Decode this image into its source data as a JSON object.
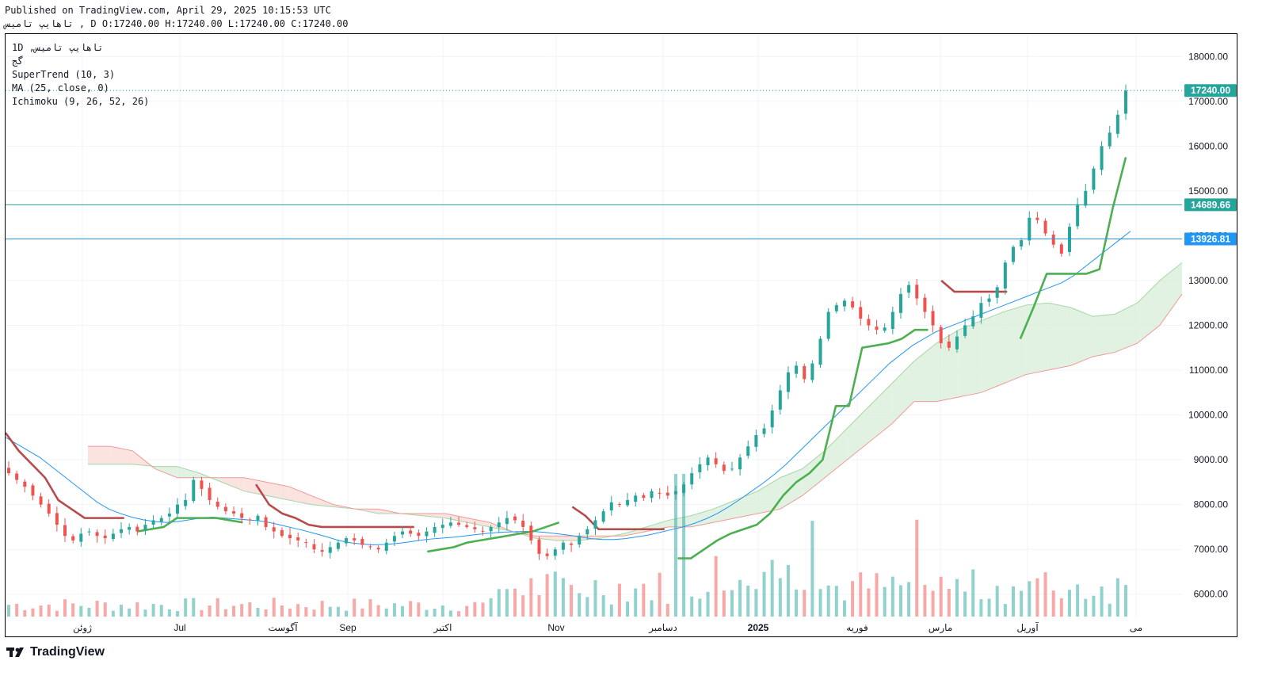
{
  "header": {
    "published": "Published on TradingView.com, April 29, 2025 10:15:53 UTC",
    "ohlc": "تاهایپ تامیس , D O:17240.00 H:17240.00 L:17240.00 C:17240.00"
  },
  "legend": {
    "symbol": "1D ,تاهایپ تامیس",
    "exchange": "گج",
    "supertrend": "SuperTrend (10, 3)",
    "ma": "MA (25, close, 0)",
    "ichimoku": "Ichimoku (9, 26, 52, 26)"
  },
  "brand": {
    "name": "TradingView"
  },
  "colors": {
    "up": "#26a69a",
    "down": "#ef5350",
    "ma": "#2196f3",
    "st_up": "#4caf50",
    "st_down": "#b74a4a",
    "cloud_up": "#d8eed8",
    "cloud_down": "#f9d9d6"
  },
  "chart_data": {
    "type": "candlestick",
    "title": "تاهایپ تامیس, 1D",
    "ylim": [
      5500,
      18500
    ],
    "y_ticks": [
      "6000.00",
      "7000.00",
      "8000.00",
      "9000.00",
      "10000.00",
      "11000.00",
      "12000.00",
      "13000.00",
      "14000.00",
      "15000.00",
      "16000.00",
      "17000.00",
      "18000.00"
    ],
    "x_ticks": [
      "ژوئن",
      "Jul",
      "آگوست",
      "Sep",
      "اکتبر",
      "Nov",
      "دسامبر",
      "2025",
      "فوریه",
      "مارس",
      "آوریل",
      "می"
    ],
    "price_labels": [
      {
        "value": 17240.0,
        "text": "17240.00",
        "style": "last_price"
      },
      {
        "value": 14689.66,
        "text": "14689.66",
        "style": "horizontal_line"
      },
      {
        "value": 13926.81,
        "text": "13926.81",
        "style": "horizontal_line"
      }
    ],
    "close_series": [
      8700,
      8550,
      8400,
      8200,
      8000,
      7800,
      7550,
      7300,
      7200,
      7350,
      7400,
      7300,
      7250,
      7350,
      7450,
      7500,
      7400,
      7550,
      7650,
      7700,
      7800,
      8000,
      8100,
      8550,
      8350,
      8100,
      7950,
      7850,
      7800,
      7700,
      7650,
      7750,
      7500,
      7400,
      7300,
      7250,
      7200,
      7150,
      7000,
      6950,
      7050,
      7150,
      7250,
      7200,
      7100,
      7050,
      7000,
      7150,
      7300,
      7400,
      7350,
      7300,
      7400,
      7500,
      7550,
      7600,
      7550,
      7500,
      7450,
      7400,
      7500,
      7600,
      7700,
      7650,
      7500,
      7200,
      6900,
      6850,
      7000,
      7150,
      7100,
      7300,
      7450,
      7650,
      7850,
      8050,
      8000,
      8100,
      8200,
      8150,
      8300,
      8250,
      8200,
      8300,
      8450,
      8700,
      8900,
      9050,
      8900,
      8750,
      8800,
      9050,
      9300,
      9550,
      9700,
      10100,
      10550,
      10950,
      11100,
      10800,
      11150,
      11700,
      12300,
      12450,
      12550,
      12400,
      12150,
      12000,
      11900,
      11950,
      12300,
      12700,
      12900,
      12600,
      12300,
      12000,
      11600,
      11500,
      11750,
      12000,
      12200,
      12500,
      12600,
      12850,
      13400,
      13750,
      13900,
      14400,
      14350,
      14050,
      13800,
      13600,
      14200,
      14700,
      15000,
      15500,
      16000,
      16300,
      16700,
      17240
    ],
    "ma_series": [
      9500,
      9350,
      9200,
      9050,
      8850,
      8650,
      8450,
      8250,
      8050,
      7900,
      7800,
      7720,
      7660,
      7620,
      7600,
      7620,
      7660,
      7700,
      7720,
      7700,
      7680,
      7660,
      7640,
      7600,
      7540,
      7480,
      7420,
      7350,
      7280,
      7200,
      7150,
      7120,
      7100,
      7110,
      7130,
      7160,
      7200,
      7230,
      7250,
      7270,
      7300,
      7330,
      7360,
      7380,
      7390,
      7400,
      7400,
      7380,
      7350,
      7320,
      7280,
      7240,
      7220,
      7220,
      7240,
      7280,
      7320,
      7380,
      7440,
      7500,
      7580,
      7680,
      7800,
      7950,
      8120,
      8300,
      8480,
      8680,
      8900,
      9150,
      9400,
      9650,
      9900,
      10150,
      10400,
      10650,
      10900,
      11150,
      11350,
      11550,
      11700,
      11850,
      11950,
      12050,
      12150,
      12250,
      12350,
      12450,
      12550,
      12650,
      12750,
      12850,
      12950,
      13100,
      13300,
      13500,
      13700,
      13900,
      14100
    ],
    "supertrend_series": [
      {
        "trend": "down",
        "values": [
          9600,
          9200,
          8900,
          8600,
          8100,
          7900,
          7700,
          7700,
          7700,
          7700
        ]
      },
      {
        "trend": "up",
        "values": [
          7400,
          7450,
          7500,
          7700,
          7700,
          7700,
          7700,
          7650,
          7600
        ]
      },
      {
        "trend": "down",
        "values": [
          8450,
          8000,
          7800,
          7700,
          7550,
          7500,
          7500,
          7500,
          7500,
          7500,
          7500,
          7500,
          7500
        ]
      },
      {
        "trend": "up",
        "values": [
          6950,
          7000,
          7050,
          7150,
          7200,
          7250,
          7300,
          7350,
          7400,
          7500,
          7600
        ]
      },
      {
        "trend": "down",
        "values": [
          7950,
          7750,
          7450,
          7450,
          7450,
          7450,
          7450,
          7450
        ]
      },
      {
        "trend": "up",
        "values": [
          6800,
          6800,
          7000,
          7200,
          7350,
          7450,
          7550,
          7800,
          8200,
          8500,
          8700,
          9000,
          10200,
          10200,
          11500,
          11550,
          11600,
          11700,
          11900,
          11900
        ]
      },
      {
        "trend": "down",
        "values": [
          13000,
          12750,
          12750,
          12750,
          12750,
          12750
        ]
      },
      {
        "trend": "up",
        "values": [
          11700,
          12400,
          13150,
          13150,
          13150,
          13150,
          13250,
          14600,
          15750
        ]
      }
    ],
    "ichimoku_cloud": {
      "span_a": [
        8900,
        8900,
        8900,
        8850,
        8850,
        8700,
        8500,
        8300,
        8200,
        8100,
        8000,
        7950,
        7900,
        7800,
        7800,
        7750,
        7700,
        7600,
        7500,
        7400,
        7250,
        7200,
        7200,
        7250,
        7350,
        7500,
        7650,
        7750,
        7900,
        8100,
        8300,
        8600,
        8800,
        9200,
        9700,
        10200,
        10700,
        11200,
        11600,
        11900,
        12100,
        12300,
        12450,
        12500,
        12400,
        12200,
        12250,
        12500,
        13000,
        13400
      ],
      "span_b": [
        9300,
        9300,
        9200,
        8800,
        8600,
        8600,
        8600,
        8600,
        8500,
        8400,
        8200,
        8000,
        7900,
        7900,
        7800,
        7800,
        7800,
        7700,
        7600,
        7400,
        7300,
        7300,
        7300,
        7300,
        7300,
        7400,
        7500,
        7500,
        7600,
        7700,
        7800,
        7900,
        8200,
        8600,
        9000,
        9400,
        9800,
        10300,
        10300,
        10400,
        10500,
        10700,
        10900,
        11000,
        11100,
        11300,
        11400,
        11600,
        12000,
        12700
      ]
    },
    "volume_units": "relative"
  }
}
